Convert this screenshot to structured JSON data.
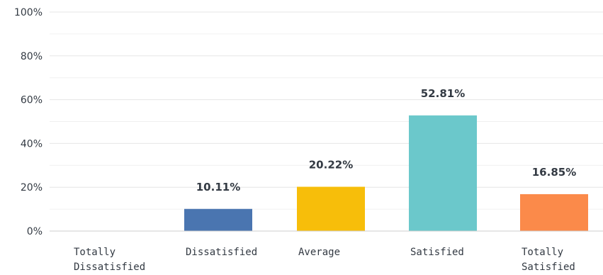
{
  "chart_data": {
    "type": "bar",
    "categories": [
      "Totally Dissatisfied",
      "Dissatisfied",
      "Average",
      "Satisfied",
      "Totally Satisfied"
    ],
    "category_lines": [
      [
        "Totally",
        "Dissatisfied"
      ],
      [
        "Dissatisfied"
      ],
      [
        "Average"
      ],
      [
        "Satisfied"
      ],
      [
        "Totally",
        "Satisfied"
      ]
    ],
    "values": [
      0,
      10.11,
      20.22,
      52.81,
      16.85
    ],
    "value_labels": [
      "",
      "10.11%",
      "20.22%",
      "52.81%",
      "16.85%"
    ],
    "colors": [
      "#4a75b0",
      "#4a75b0",
      "#f7be0a",
      "#6bc8cb",
      "#fb8a4a"
    ],
    "ylim": [
      0,
      100
    ],
    "yticks": [
      0,
      20,
      40,
      60,
      80,
      100
    ],
    "ytick_labels": [
      "0%",
      "20%",
      "40%",
      "60%",
      "80%",
      "100%"
    ],
    "grid": true,
    "title": "",
    "xlabel": "",
    "ylabel": ""
  }
}
